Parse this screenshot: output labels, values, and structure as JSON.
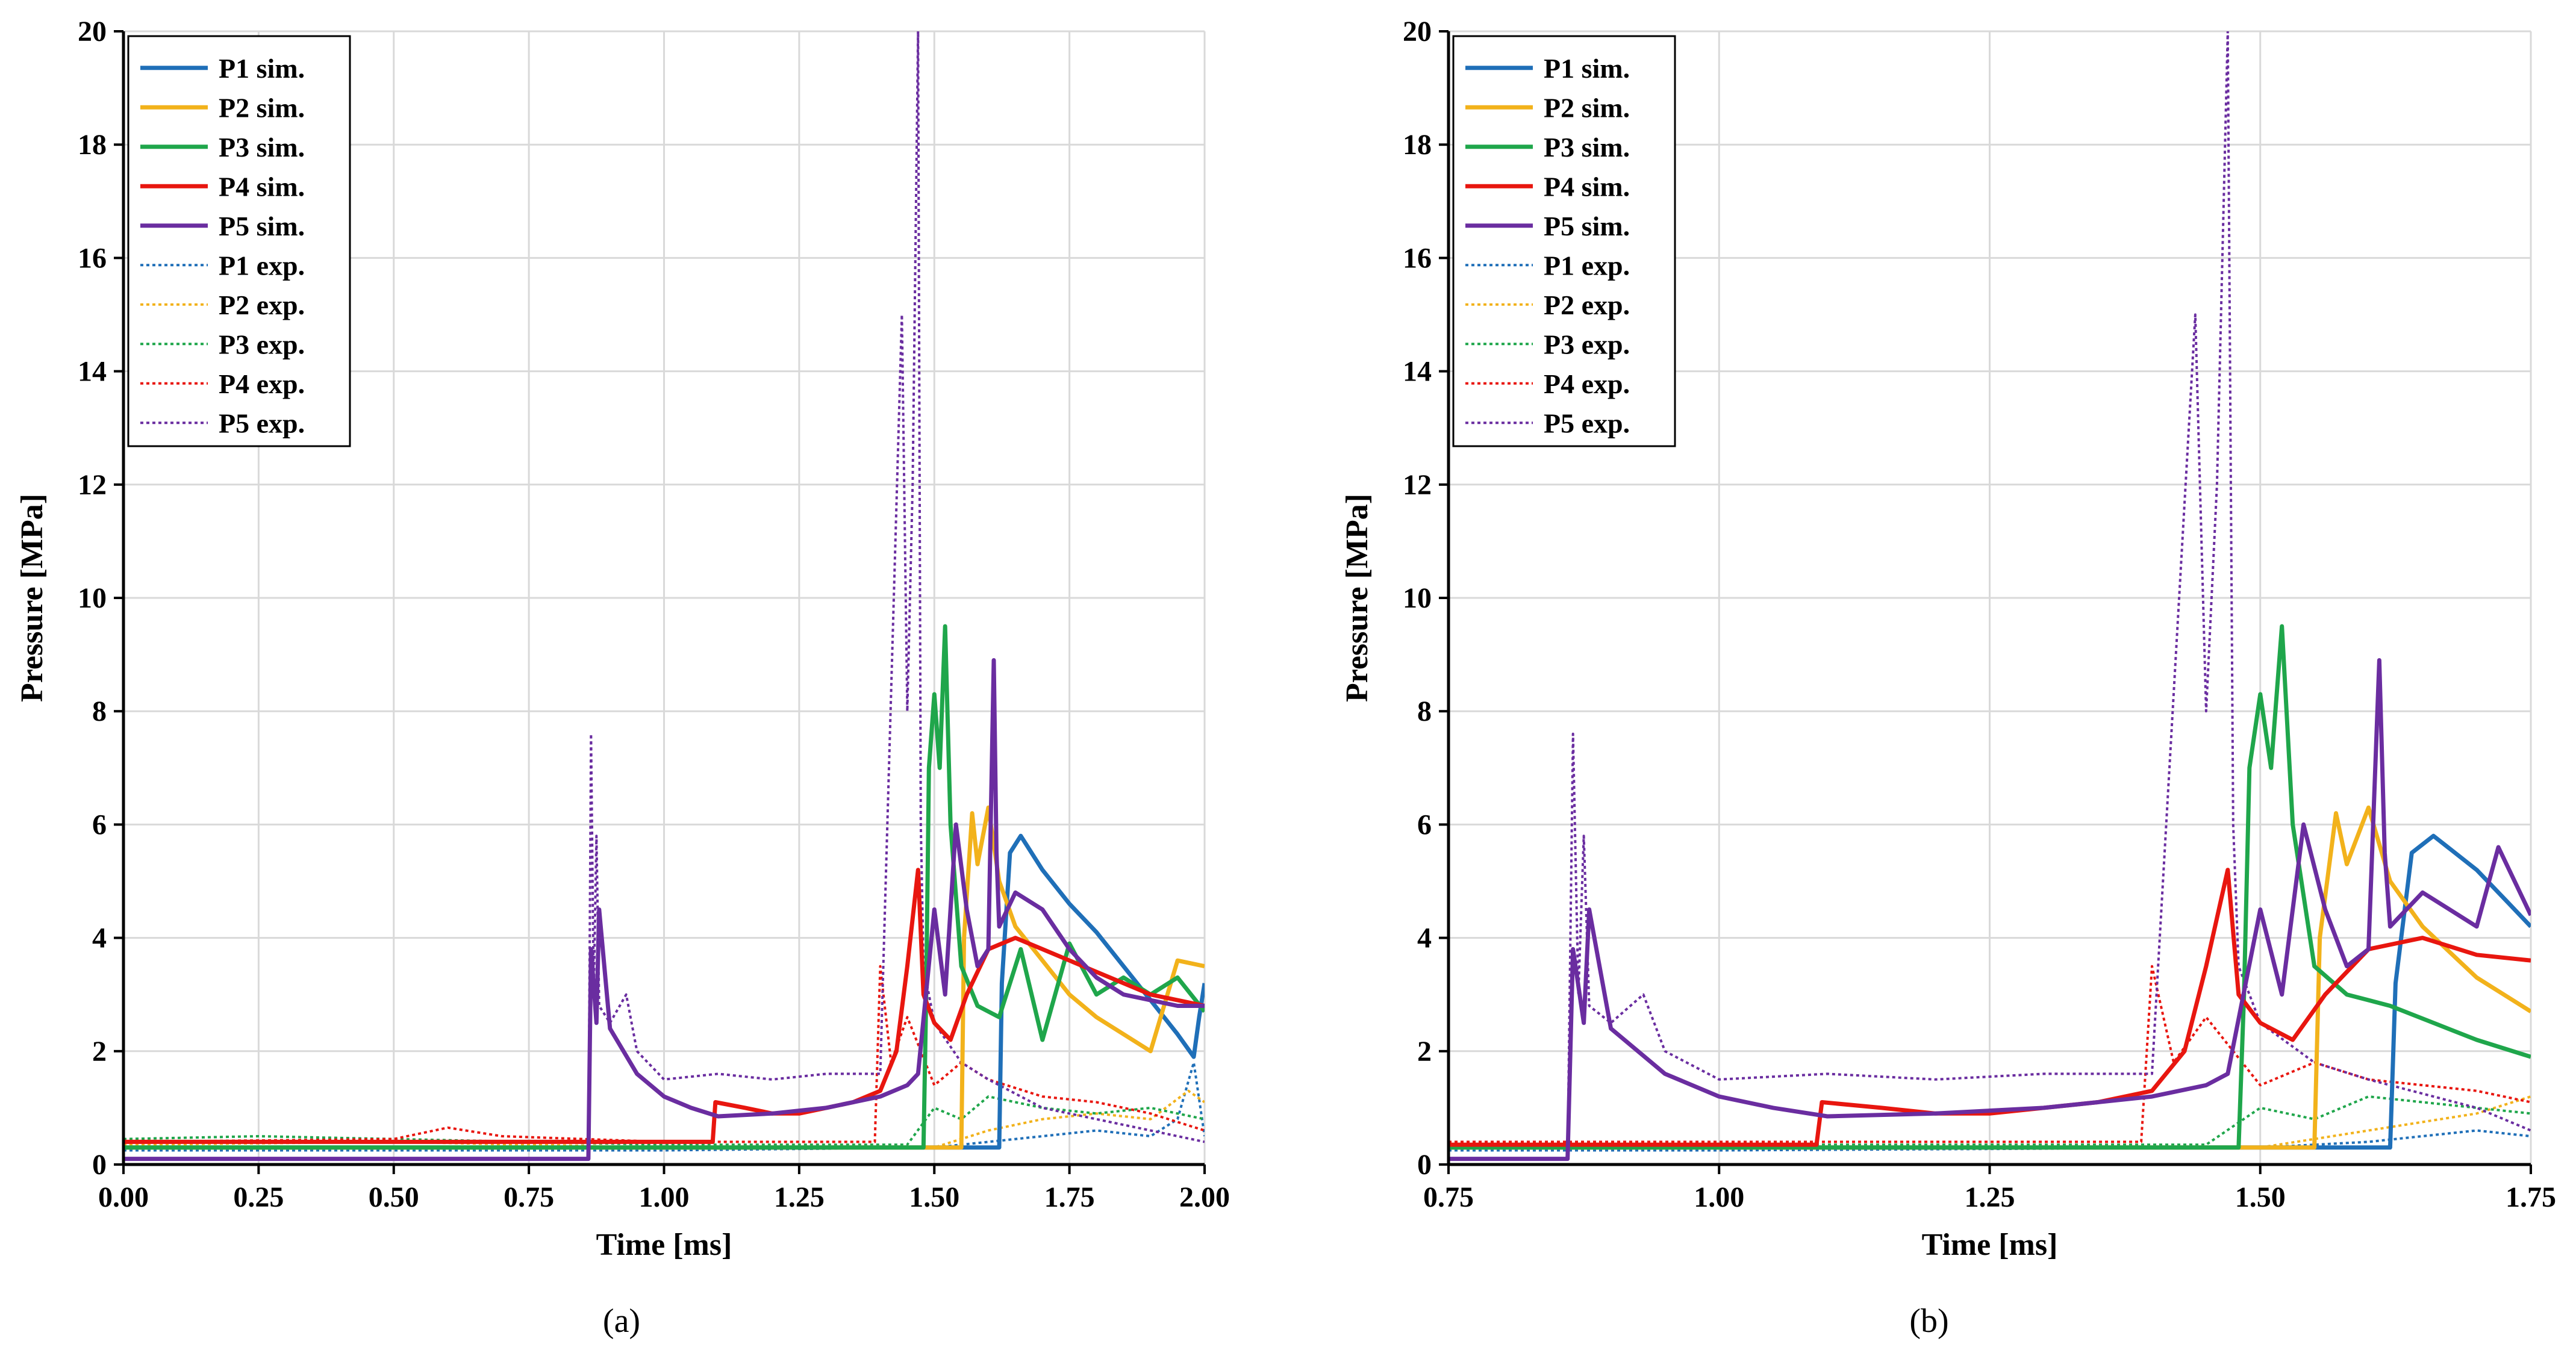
{
  "colors": {
    "P1": "#1f6fb8",
    "P2": "#f2b21b",
    "P3": "#1fa64b",
    "P4": "#e8160f",
    "P5": "#6a2da0",
    "grid": "#d9d9d9",
    "axis": "#000000"
  },
  "chart_data": [
    {
      "type": "line",
      "panel_label": "(a)",
      "panel_letter": "a",
      "xlabel": "Time [ms]",
      "ylabel": "Pressure [MPa]",
      "xlim": [
        0,
        2
      ],
      "ylim": [
        0,
        20
      ],
      "xticks": [
        0,
        0.25,
        0.5,
        0.75,
        1.0,
        1.25,
        1.5,
        1.75,
        2.0
      ],
      "xtick_labels": [
        "0.00",
        "0.25",
        "0.50",
        "0.75",
        "1.00",
        "1.25",
        "1.50",
        "1.75",
        "2.00"
      ],
      "yticks": [
        0,
        2,
        4,
        6,
        8,
        10,
        12,
        14,
        16,
        18,
        20
      ],
      "ytick_labels": [
        "0",
        "2",
        "4",
        "6",
        "8",
        "10",
        "12",
        "14",
        "16",
        "18",
        "20"
      ],
      "grid": true,
      "legend_position": "top-left",
      "legend": [
        "P1 sim.",
        "P2 sim.",
        "P3 sim.",
        "P4 sim.",
        "P5 sim.",
        "P1 exp.",
        "P2 exp.",
        "P3 exp.",
        "P4 exp.",
        "P5 exp."
      ],
      "series": [
        {
          "name": "P1 sim.",
          "key": "P1",
          "style": "solid",
          "x": [
            0,
            1.62,
            1.625,
            1.64,
            1.66,
            1.7,
            1.75,
            1.8,
            1.85,
            1.9,
            1.95,
            1.98,
            1.99,
            2.0
          ],
          "y": [
            0.3,
            0.3,
            3.2,
            5.5,
            5.8,
            5.2,
            4.6,
            4.1,
            3.5,
            2.9,
            2.3,
            1.9,
            2.6,
            3.2
          ]
        },
        {
          "name": "P2 sim.",
          "key": "P2",
          "style": "solid",
          "x": [
            0,
            1.55,
            1.555,
            1.57,
            1.58,
            1.6,
            1.62,
            1.65,
            1.7,
            1.75,
            1.8,
            1.85,
            1.9,
            1.95,
            2.0
          ],
          "y": [
            0.3,
            0.3,
            4.0,
            6.2,
            5.3,
            6.3,
            5.0,
            4.2,
            3.6,
            3.0,
            2.6,
            2.3,
            2.0,
            3.6,
            3.5
          ]
        },
        {
          "name": "P3 sim.",
          "key": "P3",
          "style": "solid",
          "x": [
            0,
            1.48,
            1.485,
            1.49,
            1.5,
            1.51,
            1.52,
            1.53,
            1.55,
            1.58,
            1.62,
            1.66,
            1.7,
            1.75,
            1.8,
            1.85,
            1.9,
            1.95,
            2.0
          ],
          "y": [
            0.3,
            0.3,
            3.0,
            7.0,
            8.3,
            7.0,
            9.5,
            6.0,
            3.5,
            2.8,
            2.6,
            3.8,
            2.2,
            3.9,
            3.0,
            3.3,
            3.0,
            3.3,
            2.7
          ]
        },
        {
          "name": "P4 sim.",
          "key": "P4",
          "style": "solid",
          "x": [
            0,
            1.09,
            1.095,
            1.15,
            1.2,
            1.25,
            1.3,
            1.35,
            1.4,
            1.43,
            1.45,
            1.47,
            1.48,
            1.5,
            1.53,
            1.56,
            1.6,
            1.65,
            1.7,
            1.75,
            1.8,
            1.85,
            1.9,
            1.95,
            2.0
          ],
          "y": [
            0.4,
            0.4,
            1.1,
            1.0,
            0.9,
            0.9,
            1.0,
            1.1,
            1.3,
            2.0,
            3.5,
            5.2,
            3.0,
            2.5,
            2.2,
            3.0,
            3.8,
            4.0,
            3.8,
            3.6,
            3.4,
            3.2,
            3.0,
            2.9,
            2.8
          ]
        },
        {
          "name": "P5 sim.",
          "key": "P5",
          "style": "solid",
          "x": [
            0,
            0.86,
            0.865,
            0.875,
            0.88,
            0.9,
            0.95,
            1.0,
            1.05,
            1.1,
            1.2,
            1.3,
            1.4,
            1.45,
            1.47,
            1.5,
            1.52,
            1.54,
            1.56,
            1.58,
            1.6,
            1.61,
            1.615,
            1.62,
            1.65,
            1.7,
            1.75,
            1.8,
            1.85,
            1.9,
            1.95,
            2.0
          ],
          "y": [
            0.1,
            0.1,
            3.8,
            2.5,
            4.5,
            2.4,
            1.6,
            1.2,
            1.0,
            0.85,
            0.9,
            1.0,
            1.2,
            1.4,
            1.6,
            4.5,
            3.0,
            6.0,
            4.5,
            3.5,
            3.8,
            8.9,
            5.5,
            4.2,
            4.8,
            4.5,
            3.8,
            3.3,
            3.0,
            2.9,
            2.8,
            2.8
          ]
        },
        {
          "name": "P1 exp.",
          "key": "P1",
          "style": "dotted",
          "x": [
            0,
            0.5,
            1.0,
            1.5,
            1.6,
            1.7,
            1.8,
            1.9,
            1.95,
            1.98,
            2.0
          ],
          "y": [
            0.25,
            0.25,
            0.25,
            0.3,
            0.4,
            0.5,
            0.6,
            0.5,
            0.8,
            1.8,
            0.5
          ]
        },
        {
          "name": "P2 exp.",
          "key": "P2",
          "style": "dotted",
          "x": [
            0,
            0.5,
            1.0,
            1.5,
            1.6,
            1.7,
            1.8,
            1.9,
            1.97,
            2.0
          ],
          "y": [
            0.35,
            0.4,
            0.3,
            0.3,
            0.6,
            0.8,
            0.9,
            0.8,
            1.3,
            1.1
          ]
        },
        {
          "name": "P3 exp.",
          "key": "P3",
          "style": "dotted",
          "x": [
            0,
            0.25,
            0.5,
            1.0,
            1.45,
            1.5,
            1.55,
            1.6,
            1.7,
            1.8,
            1.9,
            2.0
          ],
          "y": [
            0.45,
            0.5,
            0.45,
            0.35,
            0.35,
            1.0,
            0.8,
            1.2,
            1.0,
            0.9,
            1.0,
            0.8
          ]
        },
        {
          "name": "P4 exp.",
          "key": "P4",
          "style": "dotted",
          "x": [
            0,
            0.5,
            0.6,
            0.7,
            1.0,
            1.39,
            1.4,
            1.42,
            1.45,
            1.5,
            1.55,
            1.6,
            1.7,
            1.8,
            1.9,
            2.0
          ],
          "y": [
            0.4,
            0.45,
            0.65,
            0.5,
            0.4,
            0.4,
            3.5,
            1.8,
            2.6,
            1.4,
            1.8,
            1.5,
            1.2,
            1.1,
            0.9,
            0.6
          ]
        },
        {
          "name": "P5 exp.",
          "key": "P5",
          "style": "dotted",
          "x": [
            0,
            0.86,
            0.865,
            0.87,
            0.875,
            0.88,
            0.9,
            0.93,
            0.95,
            1.0,
            1.1,
            1.2,
            1.3,
            1.4,
            1.44,
            1.45,
            1.46,
            1.47,
            1.475,
            1.48,
            1.5,
            1.55,
            1.6,
            1.7,
            1.8,
            1.9,
            2.0
          ],
          "y": [
            0.1,
            0.1,
            7.6,
            3.0,
            5.8,
            2.8,
            2.5,
            3.0,
            2.0,
            1.5,
            1.6,
            1.5,
            1.6,
            1.6,
            15.0,
            8.0,
            12.0,
            20.0,
            6.0,
            3.5,
            2.5,
            1.8,
            1.5,
            1.0,
            0.8,
            0.6,
            0.4
          ]
        }
      ]
    },
    {
      "type": "line",
      "panel_label": "(b)",
      "panel_letter": "b",
      "xlabel": "Time [ms]",
      "ylabel": "Pressure [MPa]",
      "xlim": [
        0.75,
        1.75
      ],
      "ylim": [
        0,
        20
      ],
      "xticks": [
        0.75,
        1.0,
        1.25,
        1.5,
        1.75
      ],
      "xtick_labels": [
        "0.75",
        "1.00",
        "1.25",
        "1.50",
        "1.75"
      ],
      "yticks": [
        0,
        2,
        4,
        6,
        8,
        10,
        12,
        14,
        16,
        18,
        20
      ],
      "ytick_labels": [
        "0",
        "2",
        "4",
        "6",
        "8",
        "10",
        "12",
        "14",
        "16",
        "18",
        "20"
      ],
      "grid": true,
      "legend_position": "top-left",
      "legend": [
        "P1 sim.",
        "P2 sim.",
        "P3 sim.",
        "P4 sim.",
        "P5 sim.",
        "P1 exp.",
        "P2 exp.",
        "P3 exp.",
        "P4 exp.",
        "P5 exp."
      ],
      "series": [
        {
          "name": "P1 sim.",
          "key": "P1",
          "style": "solid",
          "x": [
            0.75,
            1.62,
            1.625,
            1.64,
            1.66,
            1.7,
            1.73,
            1.75
          ],
          "y": [
            0.3,
            0.3,
            3.2,
            5.5,
            5.8,
            5.2,
            4.6,
            4.2
          ]
        },
        {
          "name": "P2 sim.",
          "key": "P2",
          "style": "solid",
          "x": [
            0.75,
            1.55,
            1.555,
            1.57,
            1.58,
            1.6,
            1.62,
            1.65,
            1.7,
            1.75
          ],
          "y": [
            0.3,
            0.3,
            4.0,
            6.2,
            5.3,
            6.3,
            5.0,
            4.2,
            3.3,
            2.7
          ]
        },
        {
          "name": "P3 sim.",
          "key": "P3",
          "style": "solid",
          "x": [
            0.75,
            1.48,
            1.485,
            1.49,
            1.5,
            1.51,
            1.52,
            1.53,
            1.55,
            1.58,
            1.62,
            1.66,
            1.7,
            1.75
          ],
          "y": [
            0.3,
            0.3,
            3.0,
            7.0,
            8.3,
            7.0,
            9.5,
            6.0,
            3.5,
            3.0,
            2.8,
            2.5,
            2.2,
            1.9
          ]
        },
        {
          "name": "P4 sim.",
          "key": "P4",
          "style": "solid",
          "x": [
            0.75,
            1.09,
            1.095,
            1.15,
            1.2,
            1.25,
            1.3,
            1.35,
            1.4,
            1.43,
            1.45,
            1.47,
            1.48,
            1.5,
            1.53,
            1.56,
            1.6,
            1.65,
            1.7,
            1.75
          ],
          "y": [
            0.35,
            0.35,
            1.1,
            1.0,
            0.9,
            0.9,
            1.0,
            1.1,
            1.3,
            2.0,
            3.5,
            5.2,
            3.0,
            2.5,
            2.2,
            3.0,
            3.8,
            4.0,
            3.7,
            3.6
          ]
        },
        {
          "name": "P5 sim.",
          "key": "P5",
          "style": "solid",
          "x": [
            0.75,
            0.86,
            0.865,
            0.875,
            0.88,
            0.9,
            0.95,
            1.0,
            1.05,
            1.1,
            1.2,
            1.3,
            1.4,
            1.45,
            1.47,
            1.5,
            1.52,
            1.54,
            1.56,
            1.58,
            1.6,
            1.61,
            1.615,
            1.62,
            1.65,
            1.7,
            1.72,
            1.75
          ],
          "y": [
            0.1,
            0.1,
            3.8,
            2.5,
            4.5,
            2.4,
            1.6,
            1.2,
            1.0,
            0.85,
            0.9,
            1.0,
            1.2,
            1.4,
            1.6,
            4.5,
            3.0,
            6.0,
            4.5,
            3.5,
            3.8,
            8.9,
            5.5,
            4.2,
            4.8,
            4.2,
            5.6,
            4.4
          ]
        },
        {
          "name": "P1 exp.",
          "key": "P1",
          "style": "dotted",
          "x": [
            0.75,
            1.0,
            1.5,
            1.6,
            1.7,
            1.75
          ],
          "y": [
            0.25,
            0.25,
            0.3,
            0.4,
            0.6,
            0.5
          ]
        },
        {
          "name": "P2 exp.",
          "key": "P2",
          "style": "dotted",
          "x": [
            0.75,
            1.0,
            1.5,
            1.6,
            1.7,
            1.75
          ],
          "y": [
            0.3,
            0.3,
            0.3,
            0.6,
            0.9,
            1.2
          ]
        },
        {
          "name": "P3 exp.",
          "key": "P3",
          "style": "dotted",
          "x": [
            0.75,
            1.0,
            1.45,
            1.5,
            1.55,
            1.6,
            1.7,
            1.75
          ],
          "y": [
            0.35,
            0.35,
            0.35,
            1.0,
            0.8,
            1.2,
            1.0,
            0.9
          ]
        },
        {
          "name": "P4 exp.",
          "key": "P4",
          "style": "dotted",
          "x": [
            0.75,
            1.0,
            1.39,
            1.4,
            1.42,
            1.45,
            1.5,
            1.55,
            1.6,
            1.7,
            1.75
          ],
          "y": [
            0.4,
            0.4,
            0.4,
            3.5,
            1.8,
            2.6,
            1.4,
            1.8,
            1.5,
            1.3,
            1.1
          ]
        },
        {
          "name": "P5 exp.",
          "key": "P5",
          "style": "dotted",
          "x": [
            0.75,
            0.86,
            0.865,
            0.87,
            0.875,
            0.88,
            0.9,
            0.93,
            0.95,
            1.0,
            1.1,
            1.2,
            1.3,
            1.4,
            1.44,
            1.45,
            1.46,
            1.47,
            1.475,
            1.48,
            1.5,
            1.55,
            1.6,
            1.7,
            1.75
          ],
          "y": [
            0.1,
            0.1,
            7.6,
            3.0,
            5.8,
            2.8,
            2.5,
            3.0,
            2.0,
            1.5,
            1.6,
            1.5,
            1.6,
            1.6,
            15.0,
            8.0,
            12.0,
            20.0,
            6.0,
            3.5,
            2.5,
            1.8,
            1.5,
            1.0,
            0.6
          ]
        }
      ]
    }
  ]
}
